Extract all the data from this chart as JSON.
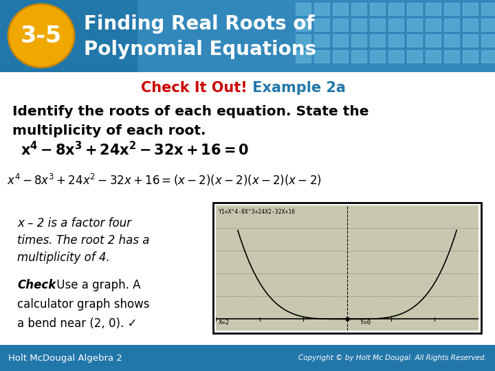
{
  "header_bg_color": "#2277aa",
  "header_bg_color2": "#4499cc",
  "tile_color": "#55aacc",
  "badge_color": "#f0a800",
  "badge_text": "3-5",
  "header_title_line1": "Finding Real Roots of",
  "header_title_line2": "Polynomial Equations",
  "check_it_out_color": "#cc0000",
  "example_color": "#2277aa",
  "check_it_out_text": "Check It Out!",
  "example_text": " Example 2a",
  "body_bg_color": "#ffffff",
  "instruction_line1": "Identify the roots of each equation. State the",
  "instruction_line2": "multiplicity of each root.",
  "body_text_color": "#000000",
  "side_text_line1": "x – 2 is a factor four",
  "side_text_line2": "times. The root 2 has a",
  "side_text_line3": "multiplicity of 4.",
  "check_bold": "Check",
  "check_rest_line1": " Use a graph. A",
  "check_rest_line2": "calculator graph shows",
  "check_rest_line3": "a bend near (2, 0). ✓",
  "footer_bg_color": "#2277aa",
  "footer_left": "Holt McDougal Algebra 2",
  "footer_right": "Copyright © by Holt Mc Dougal. All Rights Reserved."
}
